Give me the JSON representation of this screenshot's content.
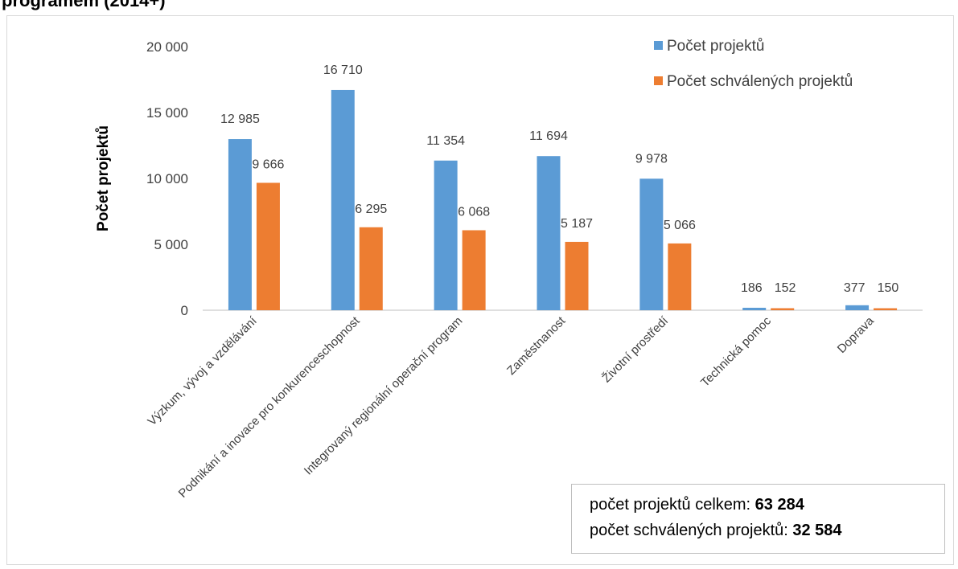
{
  "page": {
    "title_fragment": "programem (2014+)"
  },
  "chart_data": {
    "type": "bar",
    "title": "",
    "xlabel": "",
    "ylabel": "Počet projektů",
    "ylim": [
      0,
      20000
    ],
    "yticks": [
      0,
      5000,
      10000,
      15000,
      20000
    ],
    "ytick_labels": [
      "0",
      "5 000",
      "10 000",
      "15 000",
      "20 000"
    ],
    "grid": false,
    "legend_position": "top-right",
    "categories": [
      "Výzkum, vývoj a vzdělávání",
      "Podnikání a inovace pro konkurenceschopnost",
      "Integrovaný regionální operační program",
      "Zaměstnanost",
      "Životní prostředí",
      "Technická pomoc",
      "Doprava"
    ],
    "series": [
      {
        "name": "Počet projektů",
        "color": "#5b9bd5",
        "values": [
          12985,
          16710,
          11354,
          11694,
          9978,
          186,
          377
        ],
        "labels": [
          "12 985",
          "16 710",
          "11 354",
          "11 694",
          "9 978",
          "186",
          "377"
        ]
      },
      {
        "name": "Počet schválených projektů",
        "color": "#ed7d31",
        "values": [
          9666,
          6295,
          6068,
          5187,
          5066,
          152,
          150
        ],
        "labels": [
          "9 666",
          "6 295",
          "6 068",
          "5 187",
          "5 066",
          "152",
          "150"
        ]
      }
    ]
  },
  "summary": {
    "total_label": "počet projektů celkem:",
    "total_value": "63 284",
    "approved_label": "počet schválených projektů:",
    "approved_value": "32 584"
  }
}
